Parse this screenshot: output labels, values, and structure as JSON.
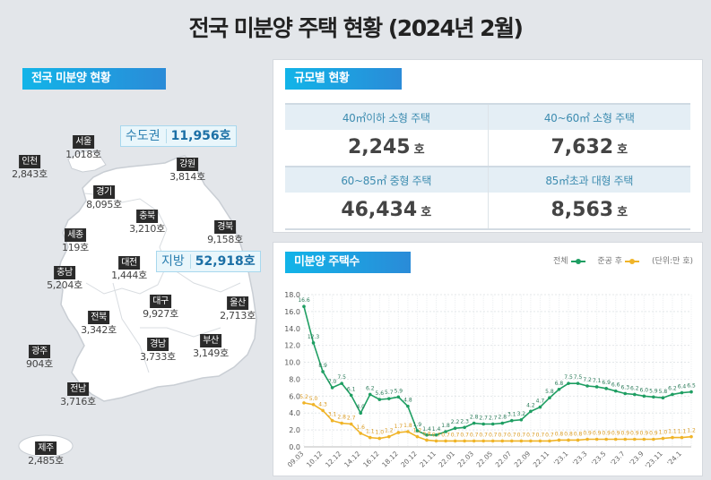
{
  "page": {
    "title": "전국 미분양 주택 현황  (2024년 2월)"
  },
  "map_section": {
    "tag": "전국 미분양 현황",
    "capital_area": {
      "label": "수도권",
      "value": "11,956호"
    },
    "provinces": {
      "label": "지방",
      "value": "52,918호"
    },
    "regions": [
      {
        "name": "서울",
        "value": "1,018호"
      },
      {
        "name": "인천",
        "value": "2,843호"
      },
      {
        "name": "경기",
        "value": "8,095호"
      },
      {
        "name": "강원",
        "value": "3,814호"
      },
      {
        "name": "충북",
        "value": "3,210호"
      },
      {
        "name": "세종",
        "value": "119호"
      },
      {
        "name": "경북",
        "value": "9,158호"
      },
      {
        "name": "충남",
        "value": "5,204호"
      },
      {
        "name": "대전",
        "value": "1,444호"
      },
      {
        "name": "대구",
        "value": "9,927호"
      },
      {
        "name": "울산",
        "value": "2,713호"
      },
      {
        "name": "전북",
        "value": "3,342호"
      },
      {
        "name": "광주",
        "value": "904호"
      },
      {
        "name": "경남",
        "value": "3,733호"
      },
      {
        "name": "부산",
        "value": "3,149호"
      },
      {
        "name": "전남",
        "value": "3,716호"
      },
      {
        "name": "제주",
        "value": "2,485호"
      }
    ]
  },
  "size_section": {
    "tag": "규모별 현황",
    "unit": "호",
    "cells": [
      {
        "label": "40㎡이하 소형 주택",
        "value": "2,245"
      },
      {
        "label": "40~60㎡ 소형 주택",
        "value": "7,632"
      },
      {
        "label": "60~85㎡ 중형 주택",
        "value": "46,434"
      },
      {
        "label": "85㎡초과 대형 주택",
        "value": "8,563"
      }
    ]
  },
  "chart_section": {
    "tag": "미분양 주택수",
    "legend": {
      "total": "전체",
      "post_completion": "준공 후",
      "unit": "(단위:만 호)"
    },
    "colors": {
      "total": "#1e9e62",
      "post_completion": "#f0b428"
    }
  },
  "chart_data": {
    "type": "line",
    "title": "미분양 주택수",
    "ylabel": "단위: 만 호",
    "ylim": [
      0,
      18
    ],
    "yticks": [
      "0.0",
      "2.0",
      "4.0",
      "6.0",
      "8.0",
      "10.0",
      "12.0",
      "14.0",
      "16.0",
      "18.0"
    ],
    "grid": true,
    "legend_position": "top-right",
    "x_tick_labels": [
      "09.03",
      "10.12",
      "12.12",
      "14.12",
      "16.12",
      "18.12",
      "20.12",
      "21.11",
      "22.01",
      "22.03",
      "22.05",
      "22.07",
      "22.09",
      "22.11",
      "'23.1",
      "'23.3",
      "'23.5",
      "'23.7",
      "'23.9",
      "'23.11",
      "'24.1"
    ],
    "x": [
      "09.03",
      "09.12",
      "10.12",
      "11.12",
      "12.12",
      "13.12",
      "14.12",
      "15.12",
      "16.12",
      "17.12",
      "18.12",
      "19.12",
      "20.12",
      "21.06",
      "21.11",
      "21.12",
      "22.01",
      "22.02",
      "22.03",
      "22.04",
      "22.05",
      "22.06",
      "22.07",
      "22.08",
      "22.09",
      "22.10",
      "22.11",
      "22.12",
      "'23.1",
      "'23.2",
      "'23.3",
      "'23.4",
      "'23.5",
      "'23.6",
      "'23.7",
      "'23.8",
      "'23.9",
      "'23.10",
      "'23.11",
      "'23.12",
      "'24.1",
      "'24.2"
    ],
    "series": [
      {
        "name": "전체",
        "values": [
          16.6,
          12.3,
          8.9,
          7.0,
          7.5,
          6.1,
          4.0,
          6.2,
          5.6,
          5.7,
          5.9,
          4.8,
          1.9,
          1.4,
          1.4,
          1.8,
          2.2,
          2.3,
          2.8,
          2.7,
          2.7,
          2.8,
          3.1,
          3.2,
          4.2,
          4.7,
          5.8,
          6.8,
          7.5,
          7.5,
          7.2,
          7.1,
          6.9,
          6.6,
          6.3,
          6.2,
          6.0,
          5.9,
          5.8,
          6.2,
          6.4,
          6.5
        ]
      },
      {
        "name": "준공 후",
        "values": [
          5.2,
          5.0,
          4.3,
          3.1,
          2.8,
          2.7,
          1.6,
          1.1,
          1.0,
          1.2,
          1.7,
          1.8,
          1.2,
          0.8,
          0.7,
          0.7,
          0.7,
          0.7,
          0.7,
          0.7,
          0.7,
          0.7,
          0.7,
          0.7,
          0.7,
          0.7,
          0.7,
          0.8,
          0.8,
          0.8,
          0.9,
          0.9,
          0.9,
          0.9,
          0.9,
          0.9,
          0.9,
          0.9,
          1.0,
          1.1,
          1.1,
          1.2
        ]
      }
    ]
  }
}
